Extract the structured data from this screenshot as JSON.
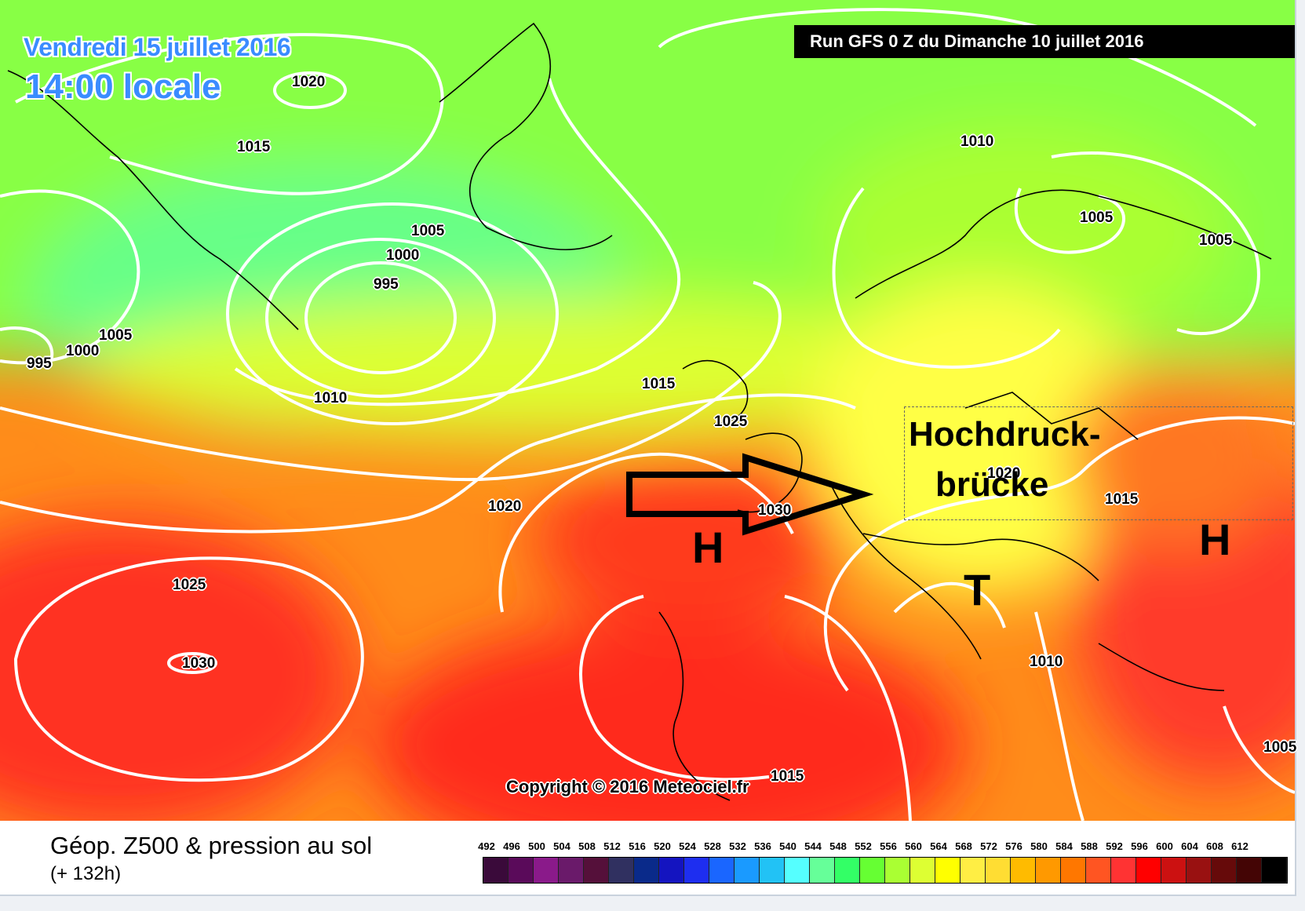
{
  "header": {
    "date": "Vendredi 15 juillet 2016",
    "time": "14:00 locale",
    "run": "Run GFS 0 Z du Dimanche 10 juillet 2016"
  },
  "isobar_labels": [
    {
      "text": "1020"
    },
    {
      "text": "1015"
    },
    {
      "text": "1010"
    },
    {
      "text": "1005"
    },
    {
      "text": "1000"
    },
    {
      "text": "995"
    },
    {
      "text": "1005"
    },
    {
      "text": "1000"
    },
    {
      "text": "995"
    },
    {
      "text": "1010"
    },
    {
      "text": "1015"
    },
    {
      "text": "1025"
    },
    {
      "text": "1020"
    },
    {
      "text": "1030"
    },
    {
      "text": "1025"
    },
    {
      "text": "1030"
    },
    {
      "text": "1020"
    },
    {
      "text": "1015"
    },
    {
      "text": "1005"
    },
    {
      "text": "1005"
    },
    {
      "text": "1010"
    },
    {
      "text": "1015"
    },
    {
      "text": "1005"
    }
  ],
  "annotation": {
    "line1": "Hochdruck-",
    "line2": "brücke"
  },
  "pressure_centers": [
    {
      "text": "H"
    },
    {
      "text": "H"
    },
    {
      "text": "T"
    }
  ],
  "copyright": "Copyright © 2016 Meteociel.fr",
  "legend": {
    "title": "Géop. Z500 & pression au sol",
    "subtitle": "(+ 132h)",
    "ticks": [
      "492",
      "496",
      "500",
      "504",
      "508",
      "512",
      "516",
      "520",
      "524",
      "528",
      "532",
      "536",
      "540",
      "544",
      "548",
      "552",
      "556",
      "560",
      "564",
      "568",
      "572",
      "576",
      "580",
      "584",
      "588",
      "592",
      "596",
      "600",
      "604",
      "608",
      "612"
    ],
    "colors": [
      "#3a0a3a",
      "#5a0a5a",
      "#8a1a8a",
      "#6a1a6a",
      "#55103a",
      "#303060",
      "#0a2a8a",
      "#1414c0",
      "#1e2ef0",
      "#1a66ff",
      "#1a9aff",
      "#22c2f5",
      "#55ffff",
      "#66ff99",
      "#33ff66",
      "#66ff33",
      "#aaff33",
      "#ddff33",
      "#ffff00",
      "#ffee44",
      "#ffdd33",
      "#ffbb00",
      "#ff9900",
      "#ff7700",
      "#ff5522",
      "#ff3333",
      "#ff0000",
      "#cc1111",
      "#991111",
      "#660a0a",
      "#440505",
      "#000000"
    ]
  }
}
